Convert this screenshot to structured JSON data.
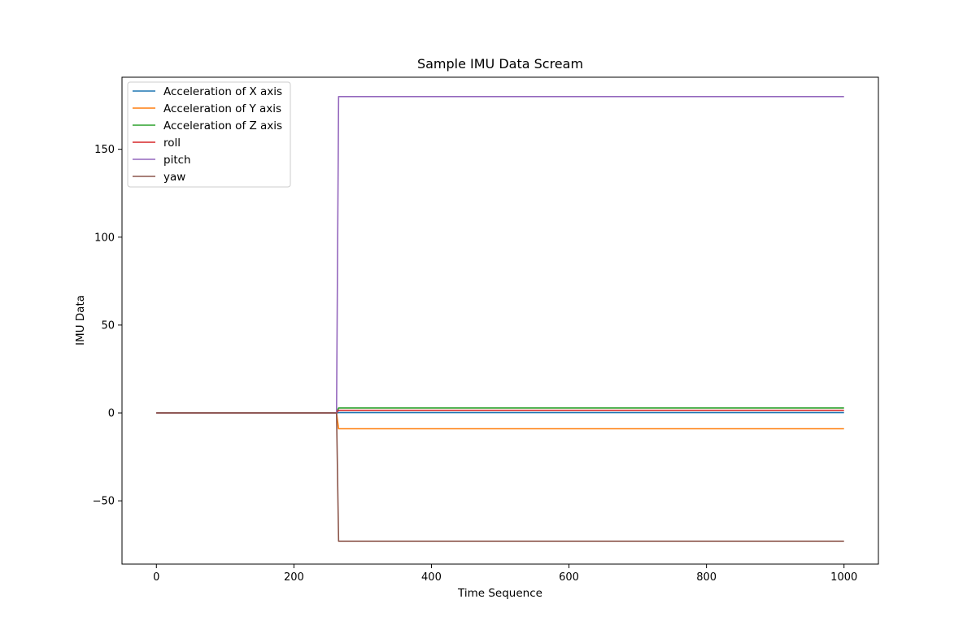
{
  "chart_data": {
    "type": "line",
    "title": "Sample IMU Data Scream",
    "xlabel": "Time Sequence",
    "ylabel": "IMU Data",
    "xlim": [
      -50,
      1050
    ],
    "ylim": [
      -86,
      191
    ],
    "xticks": [
      0,
      200,
      400,
      600,
      800,
      1000
    ],
    "xtick_labels": [
      "0",
      "200",
      "400",
      "600",
      "800",
      "1000"
    ],
    "yticks": [
      -50,
      0,
      50,
      100,
      150
    ],
    "ytick_labels": [
      "−50",
      "0",
      "50",
      "100",
      "150"
    ],
    "grid": false,
    "legend_position": "top-left",
    "series": [
      {
        "name": "Acceleration of X axis",
        "color": "#1f77b4",
        "x": [
          0,
          262,
          265,
          1000
        ],
        "y": [
          0,
          0,
          0.2,
          0.2
        ]
      },
      {
        "name": "Acceleration of Y axis",
        "color": "#ff7f0e",
        "x": [
          0,
          262,
          265,
          1000
        ],
        "y": [
          0,
          0,
          -9.0,
          -9.0
        ]
      },
      {
        "name": "Acceleration of Z axis",
        "color": "#2ca02c",
        "x": [
          0,
          262,
          265,
          1000
        ],
        "y": [
          0,
          0,
          2.8,
          2.8
        ]
      },
      {
        "name": "roll",
        "color": "#d62728",
        "x": [
          0,
          262,
          265,
          1000
        ],
        "y": [
          0,
          0,
          1.5,
          1.5
        ]
      },
      {
        "name": "pitch",
        "color": "#9467bd",
        "x": [
          0,
          262,
          265,
          1000
        ],
        "y": [
          0,
          0,
          180,
          180
        ]
      },
      {
        "name": "yaw",
        "color": "#8c564b",
        "x": [
          0,
          262,
          265,
          1000
        ],
        "y": [
          0,
          0,
          -73,
          -73
        ]
      }
    ]
  }
}
